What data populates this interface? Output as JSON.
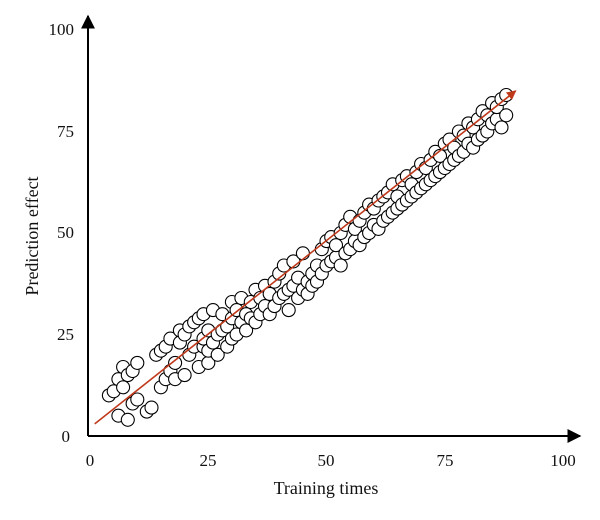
{
  "chart_data": {
    "type": "scatter",
    "title": "",
    "xlabel": "Training times",
    "ylabel": "Prediction effect",
    "xlim": [
      0,
      100
    ],
    "ylim": [
      0,
      100
    ],
    "x_ticks": [
      "0",
      "25",
      "50",
      "75",
      "100"
    ],
    "y_ticks": [
      "0",
      "25",
      "50",
      "75",
      "100"
    ],
    "grid": false,
    "legend": "none",
    "colors": {
      "marker_fill": "#ffffff",
      "marker_edge": "#000000",
      "trend": "#c0391b",
      "axis": "#000000"
    },
    "trend_arrow": {
      "x": [
        1,
        90
      ],
      "y": [
        3,
        85
      ]
    },
    "series": [
      {
        "points": [
          [
            4,
            10
          ],
          [
            5,
            11
          ],
          [
            6,
            5
          ],
          [
            6,
            14
          ],
          [
            7,
            12
          ],
          [
            7,
            17
          ],
          [
            8,
            4
          ],
          [
            8,
            15
          ],
          [
            9,
            8
          ],
          [
            9,
            16
          ],
          [
            10,
            18
          ],
          [
            10,
            9
          ],
          [
            12,
            6
          ],
          [
            13,
            7
          ],
          [
            14,
            20
          ],
          [
            15,
            12
          ],
          [
            15,
            21
          ],
          [
            16,
            14
          ],
          [
            16,
            22
          ],
          [
            17,
            16
          ],
          [
            17,
            24
          ],
          [
            18,
            18
          ],
          [
            18,
            14
          ],
          [
            19,
            23
          ],
          [
            19,
            26
          ],
          [
            20,
            15
          ],
          [
            20,
            25
          ],
          [
            21,
            20
          ],
          [
            21,
            27
          ],
          [
            22,
            22
          ],
          [
            22,
            28
          ],
          [
            23,
            17
          ],
          [
            23,
            29
          ],
          [
            24,
            22
          ],
          [
            24,
            24
          ],
          [
            24,
            30
          ],
          [
            25,
            18
          ],
          [
            25,
            21
          ],
          [
            25,
            26
          ],
          [
            26,
            23
          ],
          [
            26,
            31
          ],
          [
            27,
            20
          ],
          [
            27,
            25
          ],
          [
            28,
            26
          ],
          [
            28,
            30
          ],
          [
            29,
            22
          ],
          [
            29,
            27
          ],
          [
            30,
            24
          ],
          [
            30,
            29
          ],
          [
            30,
            33
          ],
          [
            31,
            25
          ],
          [
            31,
            31
          ],
          [
            32,
            28
          ],
          [
            32,
            34
          ],
          [
            33,
            26
          ],
          [
            33,
            30
          ],
          [
            34,
            29
          ],
          [
            34,
            33
          ],
          [
            35,
            28
          ],
          [
            35,
            36
          ],
          [
            36,
            30
          ],
          [
            36,
            34
          ],
          [
            37,
            32
          ],
          [
            37,
            37
          ],
          [
            38,
            30
          ],
          [
            38,
            35
          ],
          [
            39,
            32
          ],
          [
            39,
            38
          ],
          [
            40,
            34
          ],
          [
            40,
            40
          ],
          [
            41,
            35
          ],
          [
            41,
            42
          ],
          [
            42,
            31
          ],
          [
            42,
            36
          ],
          [
            43,
            37
          ],
          [
            43,
            43
          ],
          [
            44,
            34
          ],
          [
            44,
            39
          ],
          [
            45,
            36
          ],
          [
            45,
            45
          ],
          [
            46,
            35
          ],
          [
            46,
            38
          ],
          [
            47,
            37
          ],
          [
            47,
            40
          ],
          [
            48,
            38
          ],
          [
            48,
            42
          ],
          [
            49,
            40
          ],
          [
            49,
            46
          ],
          [
            50,
            42
          ],
          [
            50,
            48
          ],
          [
            51,
            43
          ],
          [
            51,
            49
          ],
          [
            52,
            44
          ],
          [
            52,
            47
          ],
          [
            53,
            42
          ],
          [
            53,
            50
          ],
          [
            54,
            45
          ],
          [
            54,
            52
          ],
          [
            55,
            46
          ],
          [
            55,
            54
          ],
          [
            56,
            48
          ],
          [
            56,
            51
          ],
          [
            57,
            47
          ],
          [
            57,
            53
          ],
          [
            58,
            49
          ],
          [
            58,
            55
          ],
          [
            59,
            50
          ],
          [
            59,
            57
          ],
          [
            60,
            52
          ],
          [
            60,
            56
          ],
          [
            61,
            51
          ],
          [
            61,
            58
          ],
          [
            62,
            53
          ],
          [
            62,
            59
          ],
          [
            63,
            54
          ],
          [
            63,
            60
          ],
          [
            64,
            55
          ],
          [
            64,
            62
          ],
          [
            65,
            56
          ],
          [
            65,
            59
          ],
          [
            66,
            57
          ],
          [
            66,
            63
          ],
          [
            67,
            58
          ],
          [
            67,
            64
          ],
          [
            68,
            59
          ],
          [
            68,
            62
          ],
          [
            69,
            60
          ],
          [
            69,
            65
          ],
          [
            70,
            61
          ],
          [
            70,
            67
          ],
          [
            71,
            62
          ],
          [
            71,
            66
          ],
          [
            72,
            63
          ],
          [
            72,
            68
          ],
          [
            73,
            64
          ],
          [
            73,
            70
          ],
          [
            74,
            65
          ],
          [
            74,
            69
          ],
          [
            75,
            66
          ],
          [
            75,
            72
          ],
          [
            76,
            67
          ],
          [
            76,
            73
          ],
          [
            77,
            68
          ],
          [
            77,
            71
          ],
          [
            78,
            69
          ],
          [
            78,
            75
          ],
          [
            79,
            70
          ],
          [
            79,
            74
          ],
          [
            80,
            72
          ],
          [
            80,
            77
          ],
          [
            81,
            71
          ],
          [
            81,
            76
          ],
          [
            82,
            73
          ],
          [
            82,
            78
          ],
          [
            83,
            74
          ],
          [
            83,
            80
          ],
          [
            84,
            75
          ],
          [
            84,
            79
          ],
          [
            85,
            77
          ],
          [
            85,
            82
          ],
          [
            86,
            78
          ],
          [
            86,
            81
          ],
          [
            87,
            76
          ],
          [
            87,
            83
          ],
          [
            88,
            79
          ],
          [
            88,
            84
          ]
        ]
      }
    ]
  }
}
